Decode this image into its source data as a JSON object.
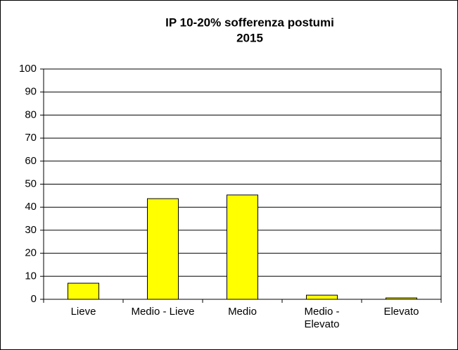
{
  "chart_data": {
    "type": "bar",
    "title": "IP 10-20% sofferenza postumi",
    "subtitle": "2015",
    "categories": [
      "Lieve",
      "Medio - Lieve",
      "Medio",
      "Medio - Elevato",
      "Elevato"
    ],
    "values": [
      7,
      43.7,
      45.3,
      1.8,
      0.6
    ],
    "color": "#ffff00",
    "ylim": [
      0,
      100
    ],
    "yticks": [
      0,
      10,
      20,
      30,
      40,
      50,
      60,
      70,
      80,
      90,
      100
    ],
    "grid": true
  }
}
